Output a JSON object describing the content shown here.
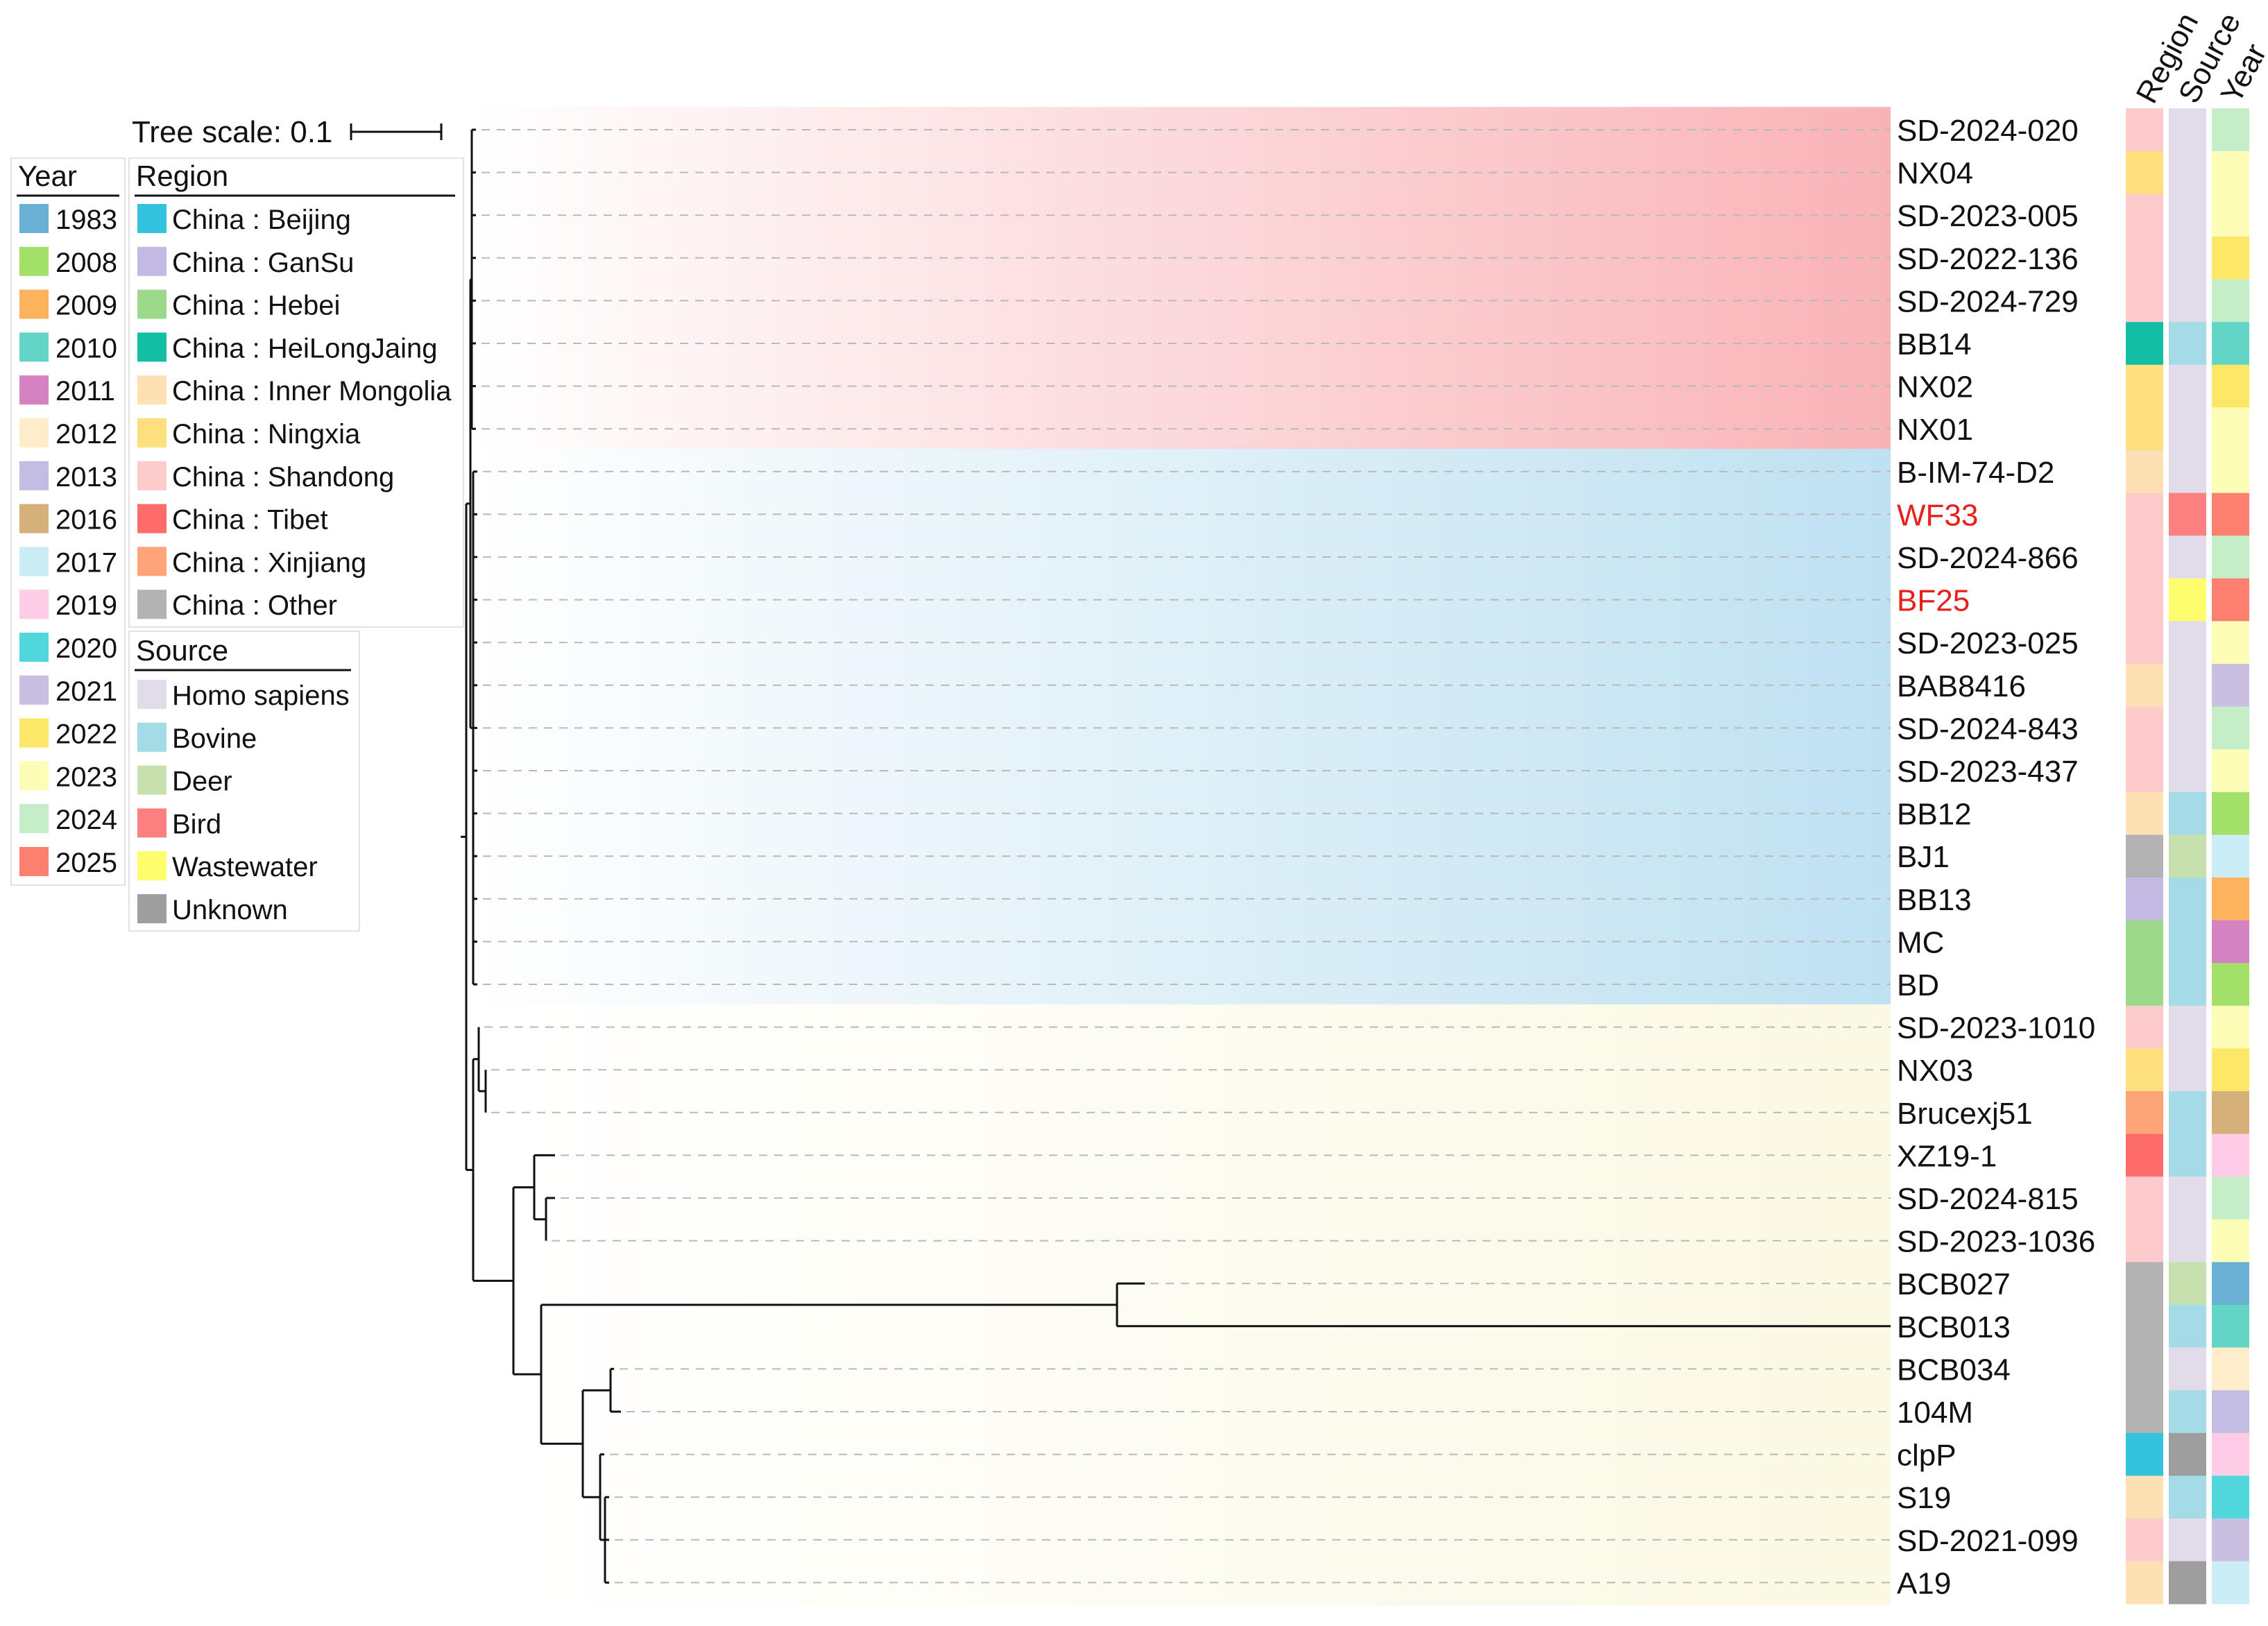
{
  "tree_scale": {
    "label": "Tree scale: 0.1"
  },
  "column_headers": [
    "Region",
    "Source",
    "Year"
  ],
  "colors": {
    "region": {
      "China : Beijing": "#33c3dd",
      "China : GanSu": "#c4b9e2",
      "China : Hebei": "#9cd98a",
      "China : HeiLongJaing": "#12bfa4",
      "China : Inner Mongolia": "#fde0b4",
      "China : Ningxia": "#fde07e",
      "China : Shandong": "#fecbcd",
      "China : Tibet": "#fd6b6b",
      "China : Xinjiang": "#fda479",
      "China : Other": "#b3b3b3"
    },
    "source": {
      "Homo sapiens": "#e2dbe9",
      "Bovine": "#a5dbe6",
      "Deer": "#c8e0ae",
      "Bird": "#fd8080",
      "Wastewater": "#fefd6e",
      "Unknown": "#9e9e9e"
    },
    "year": {
      "1983": "#6ab0d4",
      "2008": "#a3e067",
      "2009": "#fdb35d",
      "2010": "#62d5c6",
      "2011": "#d482c2",
      "2012": "#feeccb",
      "2013": "#c4bde3",
      "2016": "#d4b17b",
      "2017": "#cbeef6",
      "2019": "#fccde5",
      "2020": "#4fd7dc",
      "2021": "#c9c0e1",
      "2022": "#fde767",
      "2023": "#fefdb8",
      "2024": "#c5edc8",
      "2025": "#fc7f70"
    }
  },
  "legends": {
    "year": {
      "title": "Year",
      "items": [
        "1983",
        "2008",
        "2009",
        "2010",
        "2011",
        "2012",
        "2013",
        "2016",
        "2017",
        "2019",
        "2020",
        "2021",
        "2022",
        "2023",
        "2024",
        "2025"
      ]
    },
    "region": {
      "title": "Region",
      "items": [
        "China : Beijing",
        "China : GanSu",
        "China : Hebei",
        "China : HeiLongJaing",
        "China : Inner Mongolia",
        "China : Ningxia",
        "China : Shandong",
        "China : Tibet",
        "China : Xinjiang",
        "China : Other"
      ]
    },
    "source": {
      "title": "Source",
      "items": [
        "Homo sapiens",
        "Bovine",
        "Deer",
        "Bird",
        "Wastewater",
        "Unknown"
      ]
    }
  },
  "clades": [
    {
      "name": "clade-red",
      "first": 0,
      "last": 7,
      "color": "#f9b3b7"
    },
    {
      "name": "clade-blue",
      "first": 8,
      "last": 20,
      "color": "#bfe1f1"
    },
    {
      "name": "clade-yellow",
      "first": 21,
      "last": 34,
      "color": "#fbf8e3"
    }
  ],
  "leaves": [
    {
      "label": "SD-2024-020",
      "region": "China : Shandong",
      "source": "Homo sapiens",
      "year": "2024",
      "highlight": false
    },
    {
      "label": "NX04",
      "region": "China : Ningxia",
      "source": "Homo sapiens",
      "year": "2023",
      "highlight": false
    },
    {
      "label": "SD-2023-005",
      "region": "China : Shandong",
      "source": "Homo sapiens",
      "year": "2023",
      "highlight": false
    },
    {
      "label": "SD-2022-136",
      "region": "China : Shandong",
      "source": "Homo sapiens",
      "year": "2022",
      "highlight": false
    },
    {
      "label": "SD-2024-729",
      "region": "China : Shandong",
      "source": "Homo sapiens",
      "year": "2024",
      "highlight": false
    },
    {
      "label": "BB14",
      "region": "China : HeiLongJaing",
      "source": "Bovine",
      "year": "2010",
      "highlight": false
    },
    {
      "label": "NX02",
      "region": "China : Ningxia",
      "source": "Homo sapiens",
      "year": "2022",
      "highlight": false
    },
    {
      "label": "NX01",
      "region": "China : Ningxia",
      "source": "Homo sapiens",
      "year": "2023",
      "highlight": false
    },
    {
      "label": "B-IM-74-D2",
      "region": "China : Inner Mongolia",
      "source": "Homo sapiens",
      "year": "2023",
      "highlight": false
    },
    {
      "label": "WF33",
      "region": "China : Shandong",
      "source": "Bird",
      "year": "2025",
      "highlight": true
    },
    {
      "label": "SD-2024-866",
      "region": "China : Shandong",
      "source": "Homo sapiens",
      "year": "2024",
      "highlight": false
    },
    {
      "label": "BF25",
      "region": "China : Shandong",
      "source": "Wastewater",
      "year": "2025",
      "highlight": true
    },
    {
      "label": "SD-2023-025",
      "region": "China : Shandong",
      "source": "Homo sapiens",
      "year": "2023",
      "highlight": false
    },
    {
      "label": "BAB8416",
      "region": "China : Inner Mongolia",
      "source": "Homo sapiens",
      "year": "2021",
      "highlight": false
    },
    {
      "label": "SD-2024-843",
      "region": "China : Shandong",
      "source": "Homo sapiens",
      "year": "2024",
      "highlight": false
    },
    {
      "label": "SD-2023-437",
      "region": "China : Shandong",
      "source": "Homo sapiens",
      "year": "2023",
      "highlight": false
    },
    {
      "label": "BB12",
      "region": "China : Inner Mongolia",
      "source": "Bovine",
      "year": "2008",
      "highlight": false
    },
    {
      "label": "BJ1",
      "region": "China : Other",
      "source": "Deer",
      "year": "2017",
      "highlight": false
    },
    {
      "label": "BB13",
      "region": "China : GanSu",
      "source": "Bovine",
      "year": "2009",
      "highlight": false
    },
    {
      "label": "MC",
      "region": "China : Hebei",
      "source": "Bovine",
      "year": "2011",
      "highlight": false
    },
    {
      "label": "BD",
      "region": "China : Hebei",
      "source": "Bovine",
      "year": "2008",
      "highlight": false
    },
    {
      "label": "SD-2023-1010",
      "region": "China : Shandong",
      "source": "Homo sapiens",
      "year": "2023",
      "highlight": false
    },
    {
      "label": "NX03",
      "region": "China : Ningxia",
      "source": "Homo sapiens",
      "year": "2022",
      "highlight": false
    },
    {
      "label": "Brucexj51",
      "region": "China : Xinjiang",
      "source": "Bovine",
      "year": "2016",
      "highlight": false
    },
    {
      "label": "XZ19-1",
      "region": "China : Tibet",
      "source": "Bovine",
      "year": "2019",
      "highlight": false
    },
    {
      "label": "SD-2024-815",
      "region": "China : Shandong",
      "source": "Homo sapiens",
      "year": "2024",
      "highlight": false
    },
    {
      "label": "SD-2023-1036",
      "region": "China : Shandong",
      "source": "Homo sapiens",
      "year": "2023",
      "highlight": false
    },
    {
      "label": "BCB027",
      "region": "China : Other",
      "source": "Deer",
      "year": "1983",
      "highlight": false
    },
    {
      "label": "BCB013",
      "region": "China : Other",
      "source": "Bovine",
      "year": "2010",
      "highlight": false
    },
    {
      "label": "BCB034",
      "region": "China : Other",
      "source": "Homo sapiens",
      "year": "2012",
      "highlight": false
    },
    {
      "label": "104M",
      "region": "China : Other",
      "source": "Bovine",
      "year": "2013",
      "highlight": false
    },
    {
      "label": "clpP",
      "region": "China : Beijing",
      "source": "Unknown",
      "year": "2019",
      "highlight": false
    },
    {
      "label": "S19",
      "region": "China : Inner Mongolia",
      "source": "Bovine",
      "year": "2020",
      "highlight": false
    },
    {
      "label": "SD-2021-099",
      "region": "China : Shandong",
      "source": "Homo sapiens",
      "year": "2021",
      "highlight": false
    },
    {
      "label": "A19",
      "region": "China : Inner Mongolia",
      "source": "Unknown",
      "year": "2017",
      "highlight": false
    }
  ]
}
